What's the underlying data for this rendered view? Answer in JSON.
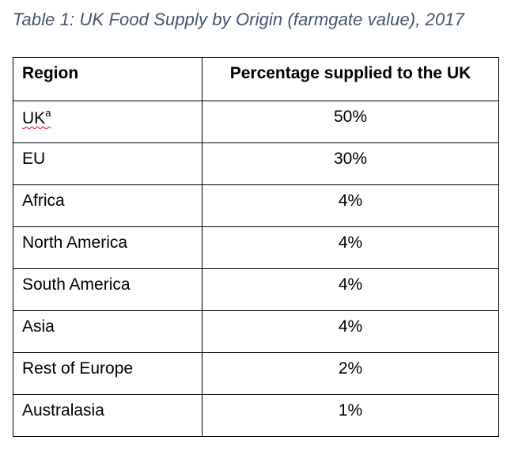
{
  "caption": "Table 1: UK Food Supply by Origin (farmgate value), 2017",
  "table": {
    "headers": [
      "Region",
      "Percentage supplied to the UK"
    ],
    "rows": [
      {
        "region": "UK",
        "footnote": "a",
        "value": "50%"
      },
      {
        "region": "EU",
        "value": "30%"
      },
      {
        "region": "Africa",
        "value": "4%"
      },
      {
        "region": "North America",
        "value": "4%"
      },
      {
        "region": "South America",
        "value": "4%"
      },
      {
        "region": "Asia",
        "value": "4%"
      },
      {
        "region": "Rest of Europe",
        "value": "2%"
      },
      {
        "region": "Australasia",
        "value": "1%"
      }
    ]
  },
  "colors": {
    "caption": "#44546a",
    "border": "#000000",
    "spellcheck_underline": "#d0021b"
  }
}
